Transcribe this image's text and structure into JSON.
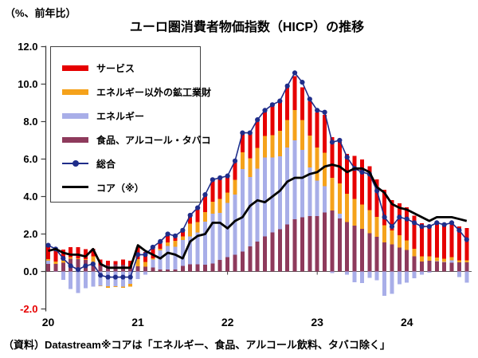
{
  "page": {
    "corner_label": "（%、前年比）",
    "title": "ユーロ圏消費者物価指数（HICP）の推移",
    "source_note": "（資料）Datastream※コアは「エネルギー、食品、アルコール飲料、タバコ除く」"
  },
  "colors": {
    "services": "#e60000",
    "goods": "#f5a21b",
    "energy": "#a8aee8",
    "food": "#8e3a5c",
    "headline": "#1f2d8a",
    "core": "#000000",
    "axis": "#404040",
    "zero_line": "#595959",
    "tick_label": "#000000",
    "negative_tick_label": "#e60000"
  },
  "legend": {
    "items": [
      {
        "name": "services",
        "label": "サービス",
        "type": "bar",
        "color": "#e60000"
      },
      {
        "name": "goods",
        "label": "エネルギー以外の鉱工業財",
        "type": "bar",
        "color": "#f5a21b"
      },
      {
        "name": "energy",
        "label": "エネルギー",
        "type": "bar",
        "color": "#a8aee8"
      },
      {
        "name": "food",
        "label": "食品、アルコール・タバコ",
        "type": "bar",
        "color": "#8e3a5c"
      },
      {
        "name": "headline",
        "label": "総合",
        "type": "line-marker",
        "color": "#1f2d8a"
      },
      {
        "name": "core",
        "label": "コア（※）",
        "type": "line",
        "color": "#000000"
      }
    ]
  },
  "chart_data": {
    "type": "bar",
    "subtype": "stacked-contribution-bars-with-lines",
    "title": "ユーロ圏消費者物価指数（HICP）の推移",
    "ylabel": "（%、前年比）",
    "ylim": [
      -2.0,
      12.0
    ],
    "grid": false,
    "legend_position": "upper-left-inside",
    "yticks": [
      12.0,
      10.0,
      8.0,
      6.0,
      4.0,
      2.0,
      0.0,
      -2.0
    ],
    "xticks": [
      {
        "month_index": 0,
        "label": "20"
      },
      {
        "month_index": 12,
        "label": "21"
      },
      {
        "month_index": 24,
        "label": "22"
      },
      {
        "month_index": 36,
        "label": "23"
      },
      {
        "month_index": 48,
        "label": "24"
      }
    ],
    "months": [
      "2020-01",
      "2020-02",
      "2020-03",
      "2020-04",
      "2020-05",
      "2020-06",
      "2020-07",
      "2020-08",
      "2020-09",
      "2020-10",
      "2020-11",
      "2020-12",
      "2021-01",
      "2021-02",
      "2021-03",
      "2021-04",
      "2021-05",
      "2021-06",
      "2021-07",
      "2021-08",
      "2021-09",
      "2021-10",
      "2021-11",
      "2021-12",
      "2022-01",
      "2022-02",
      "2022-03",
      "2022-04",
      "2022-05",
      "2022-06",
      "2022-07",
      "2022-08",
      "2022-09",
      "2022-10",
      "2022-11",
      "2022-12",
      "2023-01",
      "2023-02",
      "2023-03",
      "2023-04",
      "2023-05",
      "2023-06",
      "2023-07",
      "2023-08",
      "2023-09",
      "2023-10",
      "2023-11",
      "2023-12",
      "2024-01",
      "2024-02",
      "2024-03",
      "2024-04",
      "2024-05",
      "2024-06",
      "2024-07",
      "2024-08",
      "2024-09"
    ],
    "stack_order": [
      "food",
      "energy",
      "goods",
      "services"
    ],
    "series": {
      "food": {
        "label": "食品、アルコール・タバコ",
        "unit": "percentage-point contribution",
        "values": [
          0.4,
          0.4,
          0.46,
          0.68,
          0.65,
          0.61,
          0.38,
          0.32,
          0.34,
          0.38,
          0.36,
          0.25,
          0.28,
          0.25,
          0.21,
          0.11,
          0.1,
          0.1,
          0.3,
          0.38,
          0.38,
          0.36,
          0.42,
          0.61,
          0.76,
          0.9,
          1.07,
          1.35,
          1.59,
          1.88,
          2.08,
          2.25,
          2.51,
          2.79,
          2.89,
          2.95,
          2.96,
          3.15,
          3.26,
          2.84,
          2.63,
          2.44,
          2.27,
          2.04,
          1.85,
          1.55,
          1.44,
          1.28,
          1.15,
          0.8,
          0.53,
          0.57,
          0.53,
          0.49,
          0.47,
          0.49,
          0.49
        ]
      },
      "energy": {
        "label": "エネルギー",
        "unit": "percentage-point contribution",
        "values": [
          0.18,
          -0.03,
          -0.44,
          -0.94,
          -1.15,
          -0.9,
          -0.81,
          -0.76,
          -0.79,
          -0.79,
          -0.8,
          -0.67,
          -0.41,
          -0.17,
          0.42,
          1.01,
          1.27,
          1.22,
          1.39,
          1.49,
          1.71,
          2.3,
          2.67,
          2.51,
          2.9,
          3.2,
          4.4,
          3.7,
          3.9,
          4.2,
          4.0,
          3.9,
          4.1,
          4.2,
          3.6,
          2.6,
          1.9,
          1.4,
          -0.09,
          0.24,
          -0.18,
          -0.57,
          -0.62,
          -0.34,
          -0.47,
          -1.3,
          -1.2,
          -0.68,
          -0.6,
          -0.36,
          -0.17,
          -0.06,
          0.03,
          0.02,
          0.12,
          -0.29,
          -0.59
        ]
      },
      "goods": {
        "label": "エネルギー以外の鉱工業財",
        "unit": "percentage-point contribution",
        "values": [
          0.08,
          0.13,
          0.13,
          0.08,
          0.05,
          0.05,
          0.42,
          -0.03,
          -0.08,
          -0.03,
          -0.08,
          -0.13,
          0.39,
          0.26,
          0.08,
          0.1,
          0.18,
          0.31,
          0.18,
          0.68,
          0.55,
          0.52,
          0.63,
          0.76,
          0.56,
          0.8,
          0.9,
          1.0,
          1.1,
          1.15,
          1.2,
          1.36,
          1.47,
          1.63,
          1.6,
          1.7,
          1.76,
          1.78,
          1.73,
          1.62,
          1.52,
          1.44,
          1.31,
          1.23,
          1.07,
          0.92,
          0.76,
          0.66,
          0.52,
          0.41,
          0.28,
          0.23,
          0.18,
          0.18,
          0.18,
          0.1,
          0.1
        ]
      },
      "services": {
        "label": "サービス",
        "unit": "percentage-point contribution",
        "values": [
          0.68,
          0.72,
          0.59,
          0.54,
          0.59,
          0.54,
          0.41,
          0.32,
          0.23,
          0.18,
          0.27,
          0.32,
          0.63,
          0.54,
          0.59,
          0.41,
          0.5,
          0.32,
          0.41,
          0.5,
          0.77,
          0.95,
          1.22,
          1.08,
          0.96,
          1.05,
          1.1,
          1.38,
          1.46,
          1.42,
          1.55,
          1.59,
          1.8,
          1.8,
          1.75,
          1.84,
          1.87,
          2.04,
          2.17,
          2.21,
          2.13,
          2.3,
          2.39,
          2.34,
          2.0,
          1.9,
          1.6,
          1.7,
          1.76,
          1.76,
          1.76,
          1.63,
          1.81,
          1.81,
          1.76,
          1.81,
          1.72
        ]
      },
      "headline": {
        "label": "総合",
        "unit": "% y/y",
        "values": [
          1.4,
          1.2,
          0.7,
          0.3,
          0.1,
          0.3,
          0.4,
          -0.2,
          -0.3,
          -0.3,
          -0.3,
          -0.3,
          0.9,
          0.9,
          1.3,
          1.6,
          2.0,
          1.9,
          2.2,
          3.0,
          3.4,
          4.1,
          4.9,
          5.0,
          5.1,
          5.9,
          7.4,
          7.4,
          8.1,
          8.6,
          8.9,
          9.1,
          9.9,
          10.6,
          10.1,
          9.2,
          8.6,
          8.5,
          6.9,
          7.0,
          6.1,
          5.5,
          5.3,
          5.2,
          4.3,
          2.9,
          2.4,
          2.9,
          2.8,
          2.6,
          2.4,
          2.4,
          2.6,
          2.5,
          2.6,
          2.2,
          1.7
        ]
      },
      "core": {
        "label": "コア（※）",
        "unit": "% y/y",
        "values": [
          1.1,
          1.2,
          1.0,
          0.9,
          0.9,
          0.8,
          1.2,
          0.4,
          0.2,
          0.2,
          0.2,
          0.2,
          1.4,
          1.1,
          0.9,
          0.7,
          1.0,
          0.9,
          0.7,
          1.6,
          1.9,
          2.0,
          2.6,
          2.6,
          2.3,
          2.7,
          2.9,
          3.5,
          3.8,
          3.7,
          4.0,
          4.3,
          4.8,
          5.0,
          5.0,
          5.2,
          5.3,
          5.6,
          5.7,
          5.6,
          5.3,
          5.5,
          5.5,
          5.3,
          4.5,
          4.2,
          3.6,
          3.4,
          3.3,
          3.1,
          2.9,
          2.7,
          2.9,
          2.9,
          2.9,
          2.8,
          2.7
        ]
      }
    }
  }
}
